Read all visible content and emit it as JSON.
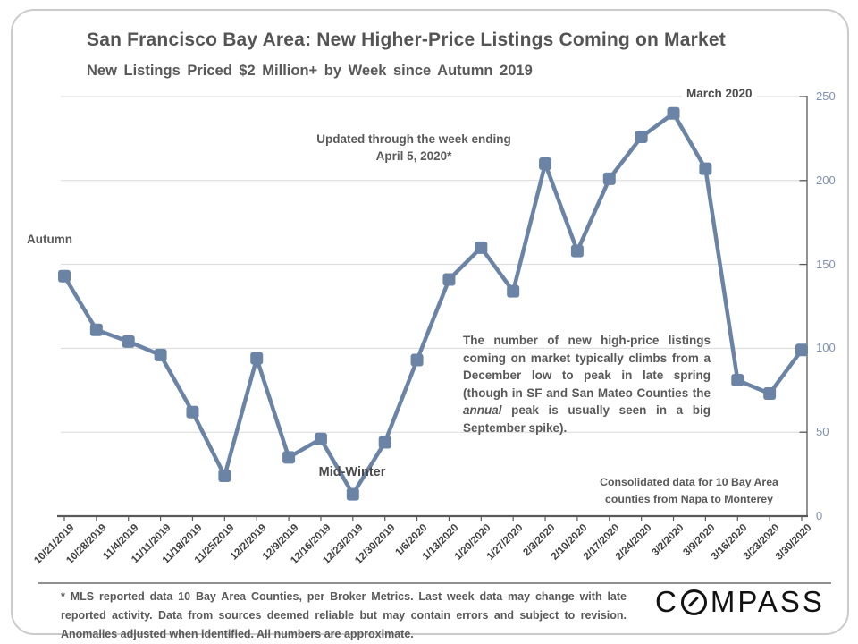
{
  "chart_data": {
    "type": "line",
    "title": "San Francisco Bay Area: New Higher-Price Listings Coming on Market",
    "subtitle": "New Listings Priced $2 Million+ by Week since Autumn 2019",
    "categories": [
      "10/21/2019",
      "10/28/2019",
      "11/4/2019",
      "11/11/2019",
      "11/18/2019",
      "11/25/2019",
      "12/2/2019",
      "12/9/2019",
      "12/16/2019",
      "12/23/2019",
      "12/30/2019",
      "1/6/2020",
      "1/13/2020",
      "1/20/2020",
      "1/27/2020",
      "2/3/2020",
      "2/10/2020",
      "2/17/2020",
      "2/24/2020",
      "3/2/2020",
      "3/9/2020",
      "3/16/2020",
      "3/23/2020",
      "3/30/2020"
    ],
    "values": [
      143,
      111,
      104,
      96,
      62,
      24,
      94,
      35,
      46,
      13,
      44,
      93,
      141,
      160,
      134,
      210,
      158,
      201,
      226,
      240,
      207,
      81,
      73,
      99
    ],
    "ylim": [
      0,
      250
    ],
    "yticks": [
      0,
      50,
      100,
      150,
      200,
      250
    ],
    "grid": true,
    "legend": "none",
    "y_axis_side": "right",
    "marker": "square",
    "annotations": {
      "autumn": "Autumn",
      "updated_note": "Updated through the week ending April 5, 2020*",
      "march_peak": "March 2020",
      "mid_winter": "Mid-Winter",
      "body_text_before_italic": "The number of new high-price listings coming on market typically climbs from a December low to peak in late spring (though in SF and San Mateo Counties the ",
      "body_text_italic": "annual",
      "body_text_after_italic": " peak is usually seen in a big September spike).",
      "consolidated_note": "Consolidated data for 10 Bay Area counties from Napa to Monterey"
    }
  },
  "footer": {
    "footnote": "* MLS reported data 10 Bay Area Counties, per Broker Metrics. Last week data may change with late reported activity. Data from sources deemed reliable but may contain errors and subject to revision. Anomalies adjusted when identified. All numbers are approximate.",
    "logo_prefix": "C",
    "logo_suffix": "MPASS",
    "logo_name": "COMPASS"
  },
  "colors": {
    "line": "#6B84A6",
    "grid": "#D9D9D9",
    "axis": "#595959",
    "x_labels": "#3F3F3F",
    "y_labels": "#7E90B3",
    "text": "#595959",
    "logo": "#121212"
  }
}
